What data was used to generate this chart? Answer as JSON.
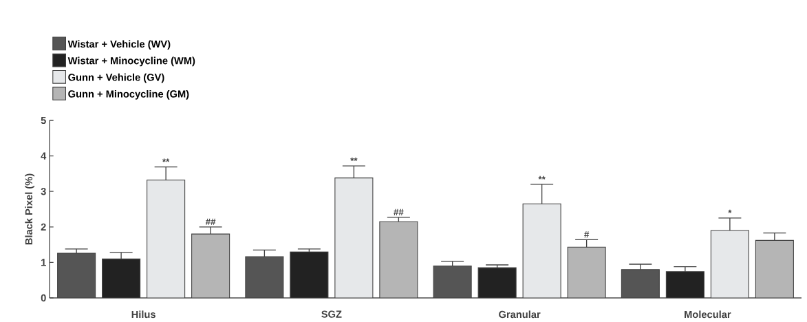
{
  "chart_data": {
    "type": "bar",
    "ylabel": "Black Pixel (%)",
    "categories": [
      "Hilus",
      "SGZ",
      "Granular",
      "Molecular"
    ],
    "series": [
      {
        "name": "Wistar + Vehicle (WV)",
        "color": "#555555",
        "values": [
          1.26,
          1.16,
          0.9,
          0.8
        ],
        "errors": [
          0.12,
          0.19,
          0.13,
          0.15
        ]
      },
      {
        "name": "Wistar + Minocycline (WM)",
        "color": "#222222",
        "values": [
          1.1,
          1.3,
          0.85,
          0.74
        ],
        "errors": [
          0.18,
          0.08,
          0.08,
          0.14
        ]
      },
      {
        "name": "Gunn + Vehicle (GV)",
        "color": "#e6e8ea",
        "values": [
          3.32,
          3.38,
          2.65,
          1.9
        ],
        "errors": [
          0.37,
          0.34,
          0.55,
          0.35
        ],
        "value_labels": [
          "**",
          "**",
          "**",
          "*"
        ]
      },
      {
        "name": "Gunn + Minocycline (GM)",
        "color": "#b5b5b5",
        "values": [
          1.8,
          2.15,
          1.43,
          1.62
        ],
        "errors": [
          0.2,
          0.12,
          0.21,
          0.21
        ],
        "value_labels": [
          "##",
          "##",
          "#",
          null
        ]
      }
    ],
    "ylim": [
      0,
      5
    ],
    "yticks": [
      0,
      1,
      2,
      3,
      4,
      5
    ],
    "legend": "top left"
  }
}
